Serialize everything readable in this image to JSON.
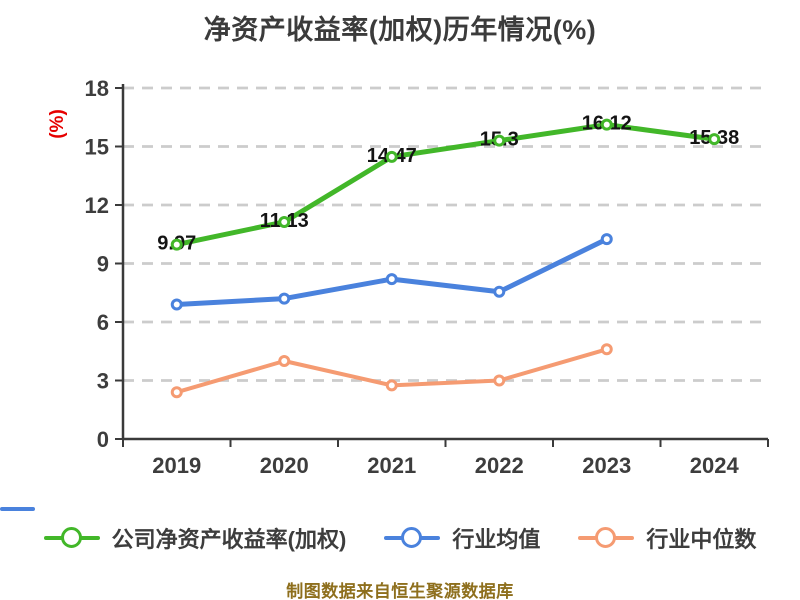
{
  "title": "净资产收益率(加权)历年情况(%)",
  "y_axis_label": "(%)",
  "caption": "制图数据来自恒生聚源数据库",
  "colors": {
    "background": "#ffffff",
    "title_text": "#3b3b3b",
    "axis": "#3a3a3a",
    "axis_tick_labels": "#3d3d3d",
    "gridline": "#cccccc",
    "data_label_text": "#141414",
    "y_axis_label_red": "#e60000",
    "caption_gold": "#8e6f1d",
    "company_green": "#42b729",
    "industry_mean_blue": "#4a82dd",
    "industry_median_orange": "#f59b72"
  },
  "chart_data": {
    "type": "line",
    "title": "净资产收益率(加权)历年情况(%)",
    "xlabel": "",
    "ylabel": "(%)",
    "categories": [
      "2019",
      "2020",
      "2021",
      "2022",
      "2023",
      "2024"
    ],
    "ylim": [
      0,
      18
    ],
    "yticks": [
      0,
      3,
      6,
      9,
      12,
      15,
      18
    ],
    "grid": "horizontal-dashed",
    "legend_position": "bottom",
    "series": [
      {
        "name": "公司净资产收益率(加权)",
        "color": "#42b729",
        "line_width": 5,
        "values": [
          9.97,
          11.13,
          14.47,
          15.3,
          16.12,
          15.38
        ],
        "labels": [
          "9.97",
          "11.13",
          "14.47",
          "15.3",
          "16.12",
          "15.38"
        ]
      },
      {
        "name": "行业均值",
        "color": "#4a82dd",
        "line_width": 5,
        "values": [
          6.9,
          7.2,
          8.2,
          7.55,
          10.25,
          null
        ],
        "labels": null
      },
      {
        "name": "行业中位数",
        "color": "#f59b72",
        "line_width": 4,
        "values": [
          2.4,
          4.0,
          2.75,
          3.0,
          4.6,
          null
        ],
        "labels": null
      }
    ]
  }
}
